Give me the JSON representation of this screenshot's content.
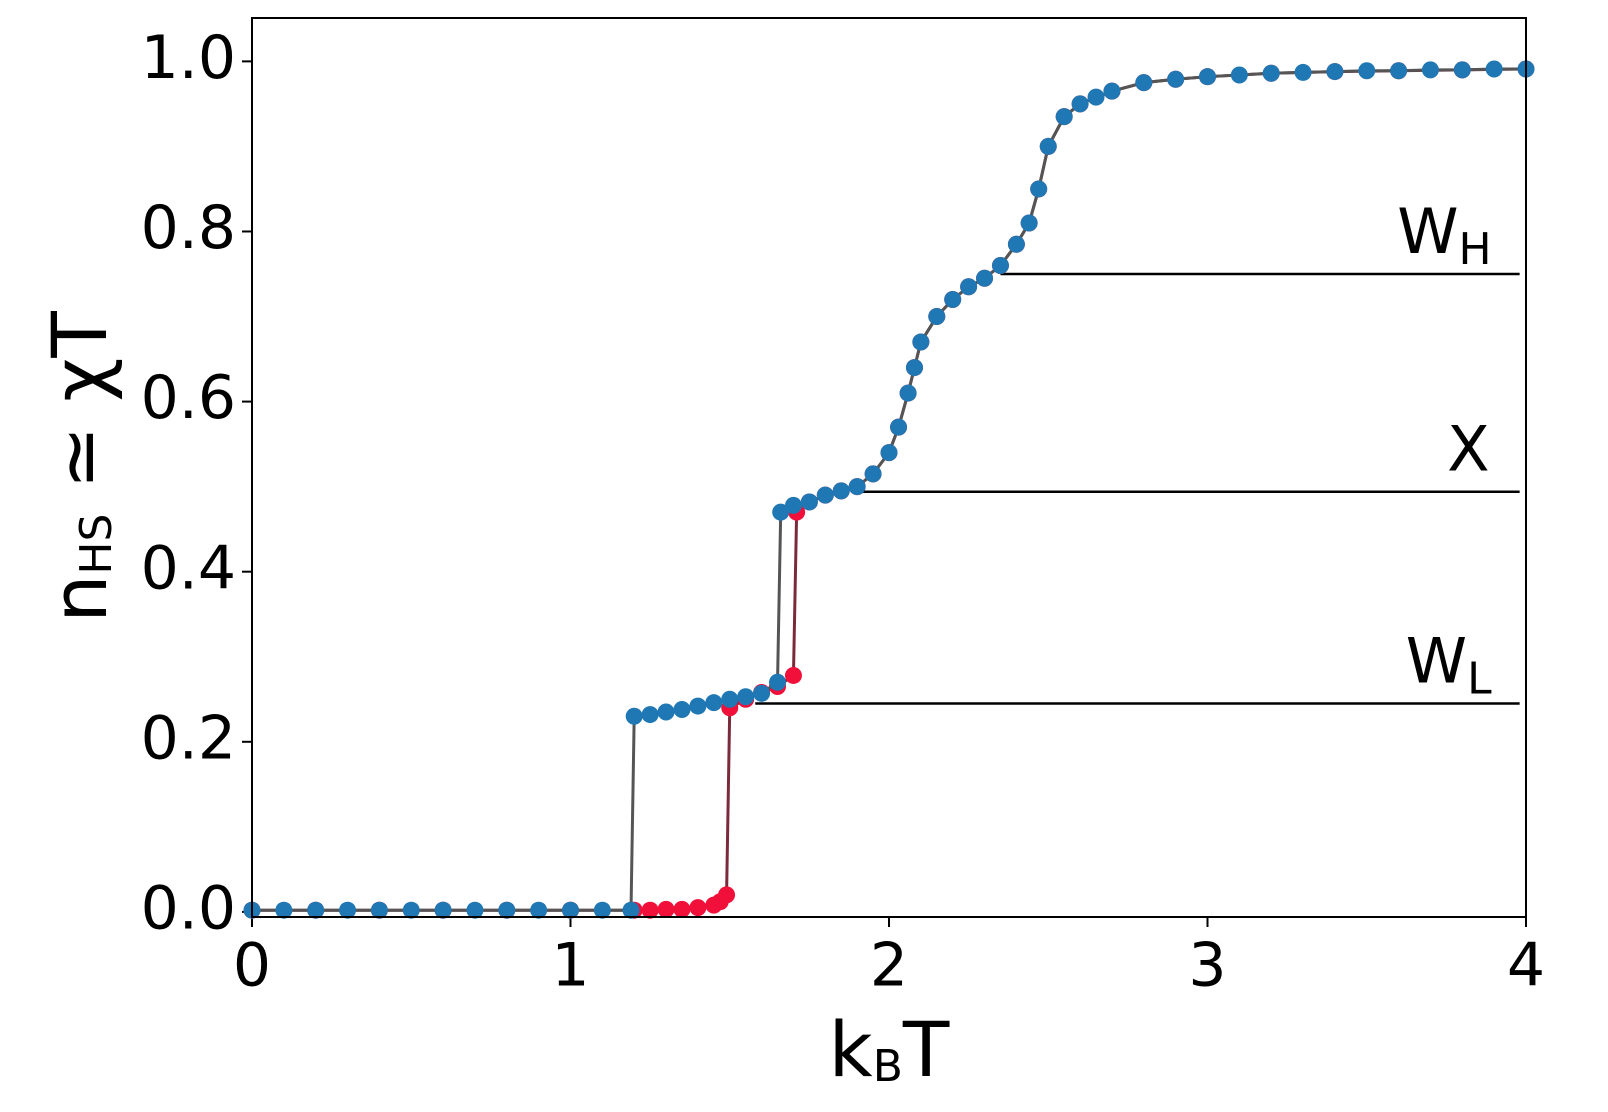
{
  "chart_data": {
    "type": "line",
    "xlabel": {
      "main": "k",
      "sub": "B",
      "rest": "T"
    },
    "ylabel": {
      "main": "n",
      "sub": "HS",
      "rest": " ≃ χT"
    },
    "xlim": [
      0,
      4
    ],
    "ylim": [
      -0.006,
      1.051
    ],
    "xticks": [
      0,
      1,
      2,
      3,
      4
    ],
    "yticks": [
      {
        "value": 0,
        "label": "0.0"
      },
      {
        "value": 0.2,
        "label": "0.2"
      },
      {
        "value": 0.4,
        "label": "0.4"
      },
      {
        "value": 0.6,
        "label": "0.6"
      },
      {
        "value": 0.8,
        "label": "0.8"
      },
      {
        "value": 1,
        "label": "1.0"
      }
    ],
    "series": [
      {
        "color": "#f0103a",
        "line_color": "#7a2a3a",
        "x": [
          0,
          0.2,
          0.4,
          0.6,
          0.8,
          1.0,
          1.2,
          1.25,
          1.3,
          1.35,
          1.4,
          1.45,
          1.47,
          1.49,
          1.5,
          1.55,
          1.6,
          1.65,
          1.7,
          1.71,
          1.75,
          1.8,
          1.85,
          1.9,
          1.95,
          2.0,
          2.03,
          2.06,
          2.08,
          2.1,
          2.15,
          2.2,
          2.25,
          2.3,
          2.35,
          2.4,
          2.44,
          2.47,
          2.5,
          2.55,
          2.6,
          2.7,
          2.8,
          2.9,
          3.0,
          3.2,
          3.4,
          3.6,
          3.8,
          4.0
        ],
        "values": [
          0.002,
          0.002,
          0.002,
          0.002,
          0.002,
          0.002,
          0.002,
          0.002,
          0.003,
          0.003,
          0.005,
          0.008,
          0.012,
          0.02,
          0.24,
          0.25,
          0.258,
          0.265,
          0.278,
          0.47,
          0.482,
          0.49,
          0.495,
          0.5,
          0.515,
          0.54,
          0.57,
          0.61,
          0.64,
          0.67,
          0.7,
          0.72,
          0.735,
          0.745,
          0.76,
          0.785,
          0.81,
          0.85,
          0.9,
          0.935,
          0.95,
          0.965,
          0.975,
          0.979,
          0.982,
          0.986,
          0.988,
          0.989,
          0.99,
          0.991
        ]
      },
      {
        "color": "#1f77b4",
        "line_color": "#555555",
        "x": [
          0,
          0.1,
          0.2,
          0.3,
          0.4,
          0.5,
          0.6,
          0.7,
          0.8,
          0.9,
          1.0,
          1.1,
          1.19,
          1.2,
          1.25,
          1.3,
          1.35,
          1.4,
          1.45,
          1.5,
          1.55,
          1.6,
          1.65,
          1.66,
          1.7,
          1.75,
          1.8,
          1.85,
          1.9,
          1.95,
          2.0,
          2.03,
          2.06,
          2.08,
          2.1,
          2.15,
          2.2,
          2.25,
          2.3,
          2.35,
          2.4,
          2.44,
          2.47,
          2.5,
          2.55,
          2.6,
          2.65,
          2.7,
          2.8,
          2.9,
          3.0,
          3.1,
          3.2,
          3.3,
          3.4,
          3.5,
          3.6,
          3.7,
          3.8,
          3.9,
          4.0
        ],
        "values": [
          0.002,
          0.002,
          0.002,
          0.002,
          0.002,
          0.002,
          0.002,
          0.002,
          0.002,
          0.002,
          0.002,
          0.002,
          0.002,
          0.23,
          0.232,
          0.235,
          0.238,
          0.242,
          0.246,
          0.25,
          0.253,
          0.257,
          0.27,
          0.47,
          0.478,
          0.482,
          0.49,
          0.495,
          0.5,
          0.515,
          0.54,
          0.57,
          0.61,
          0.64,
          0.67,
          0.7,
          0.72,
          0.735,
          0.745,
          0.76,
          0.785,
          0.81,
          0.85,
          0.9,
          0.935,
          0.95,
          0.958,
          0.965,
          0.975,
          0.979,
          0.982,
          0.984,
          0.986,
          0.987,
          0.988,
          0.989,
          0.989,
          0.99,
          0.99,
          0.991,
          0.991
        ]
      }
    ],
    "hlines": [
      {
        "y": 0.75,
        "xmin": 2.35,
        "xmax": 3.98,
        "label": {
          "main": "W",
          "sub": "H"
        }
      },
      {
        "y": 0.494,
        "xmin": 1.91,
        "xmax": 3.98,
        "label": {
          "main": "X"
        }
      },
      {
        "y": 0.245,
        "xmin": 1.58,
        "xmax": 3.98,
        "label": {
          "main": "W",
          "sub": "L"
        }
      }
    ]
  }
}
